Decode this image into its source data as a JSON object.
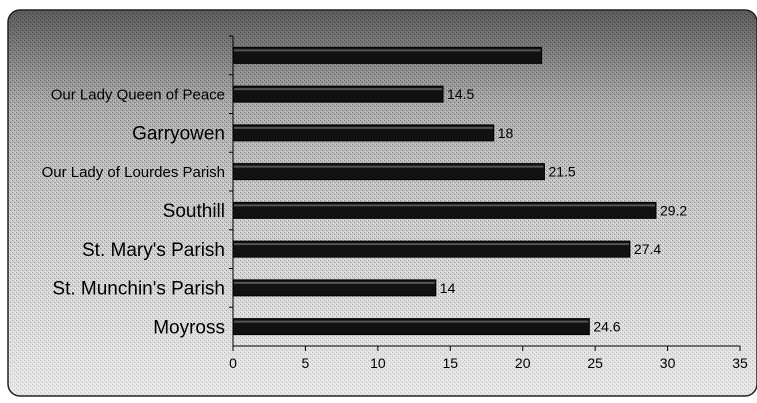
{
  "chart_data": {
    "type": "bar",
    "orientation": "horizontal",
    "title": "",
    "xlabel": "",
    "ylabel": "",
    "categories": [
      "Moyross",
      "St. Munchin's Parish",
      "St. Mary's Parish",
      "Southill",
      "Our Lady of Lourdes Parish",
      "Garryowen",
      "Our Lady Queen of Peace",
      ""
    ],
    "values": [
      24.6,
      14,
      27.4,
      29.2,
      21.5,
      18,
      14.5,
      21.3
    ],
    "data_labels": [
      "24.6",
      "14",
      "27.4",
      "29.2",
      "21.5",
      "18",
      "14.5",
      ""
    ],
    "xlim": [
      0,
      35
    ],
    "xticks": [
      "0",
      "5",
      "10",
      "15",
      "20",
      "25",
      "30",
      "35"
    ],
    "grid": false,
    "legend": "none",
    "bar_color": "#111111"
  }
}
